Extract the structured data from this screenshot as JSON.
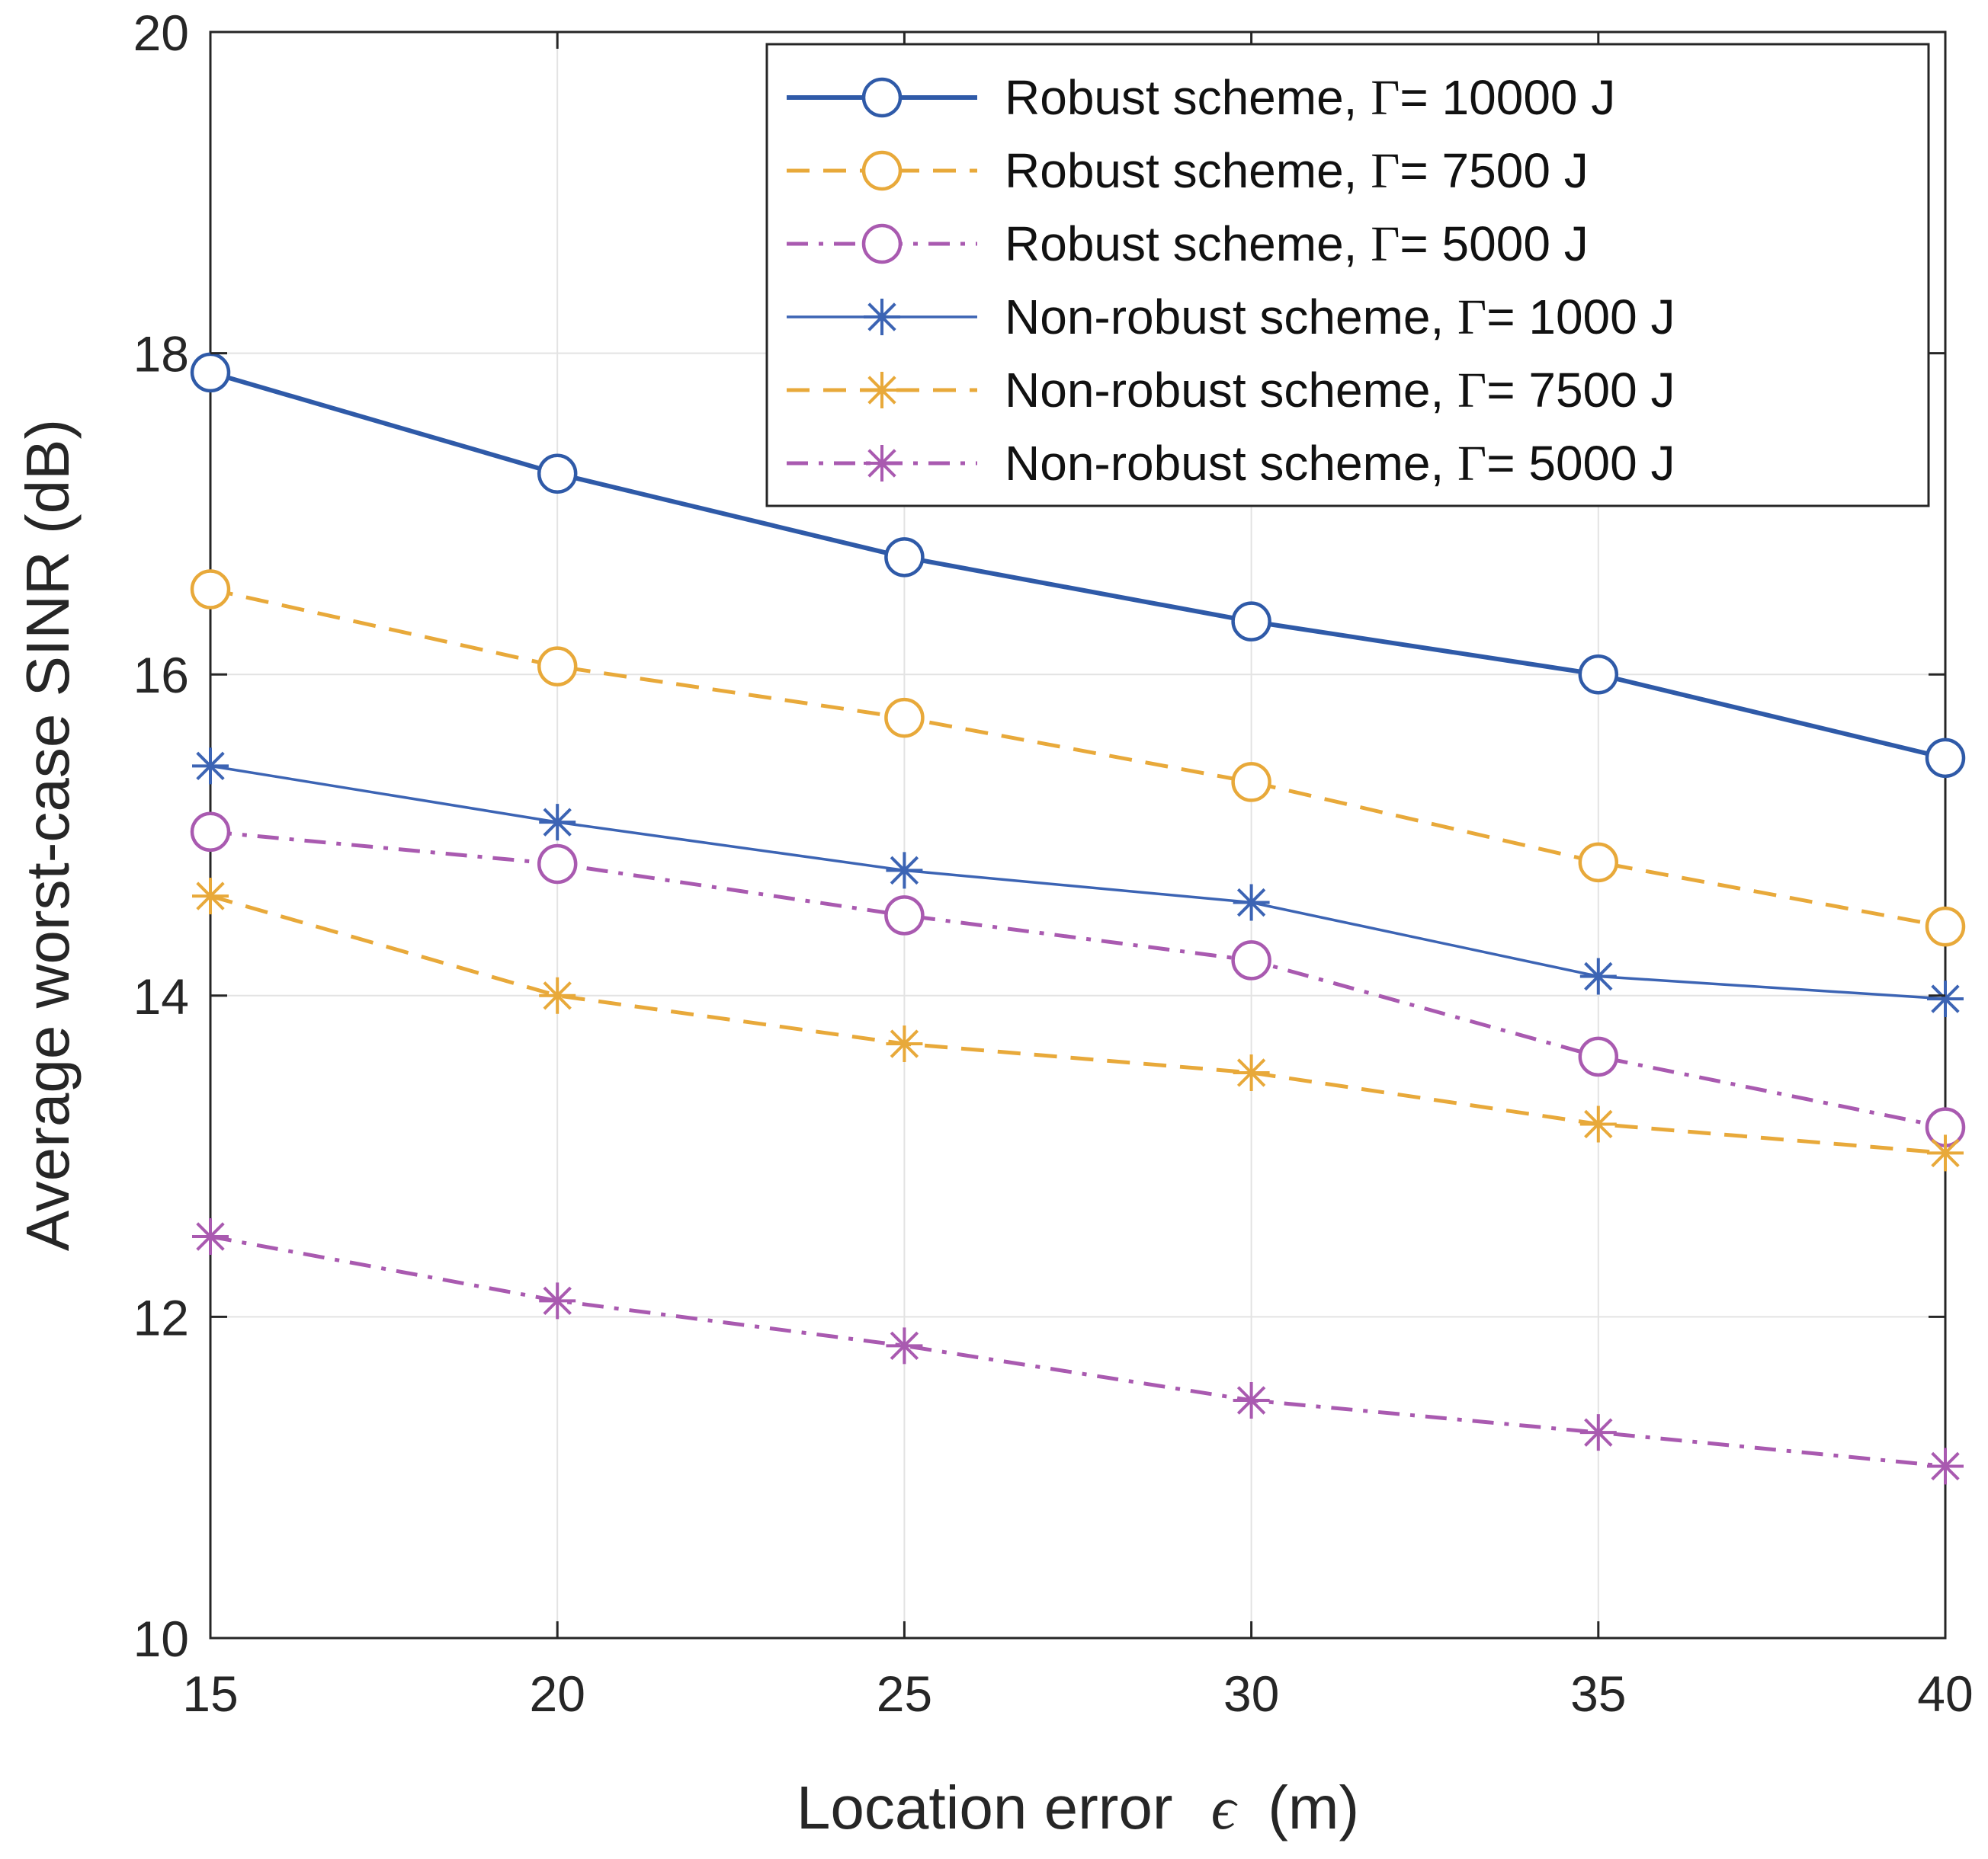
{
  "chart_data": {
    "type": "line",
    "title": "",
    "xlabel": "Location error",
    "xlabel_symbol": "ϵ",
    "xlabel_unit": "(m)",
    "ylabel": "Average worst-case SINR (dB)",
    "xlim": [
      15,
      40
    ],
    "ylim": [
      10,
      20
    ],
    "x": [
      15,
      20,
      25,
      30,
      35,
      40
    ],
    "xticks": [
      "15",
      "20",
      "25",
      "30",
      "35",
      "40"
    ],
    "yticks": [
      "10",
      "12",
      "14",
      "16",
      "18",
      "20"
    ],
    "grid": true,
    "legend_position": "top-right",
    "series": [
      {
        "name": "Robust scheme, ",
        "gamma_symbol": "Γ",
        "gamma_value": "= 10000 J",
        "color": "#2f5aa8",
        "dash": "solid",
        "marker": "circle",
        "width": "thick",
        "values": [
          17.88,
          17.25,
          16.73,
          16.33,
          16.0,
          15.48
        ]
      },
      {
        "name": "Robust scheme, ",
        "gamma_symbol": "Γ",
        "gamma_value": "= 7500 J",
        "color": "#e8a93a",
        "dash": "dashed",
        "marker": "circle",
        "width": "normal",
        "values": [
          16.53,
          16.05,
          15.73,
          15.33,
          14.83,
          14.43
        ]
      },
      {
        "name": "Robust scheme, ",
        "gamma_symbol": "Γ",
        "gamma_value": "= 5000 J",
        "color": "#a95ab0",
        "dash": "dashdot",
        "marker": "circle",
        "width": "normal",
        "values": [
          15.02,
          14.82,
          14.5,
          14.22,
          13.62,
          13.18
        ]
      },
      {
        "name": "Non-robust scheme, ",
        "gamma_symbol": "Γ",
        "gamma_value": "= 1000 J",
        "color": "#3c64b4",
        "dash": "solid",
        "marker": "star",
        "width": "thin",
        "values": [
          15.43,
          15.08,
          14.78,
          14.58,
          14.12,
          13.98
        ]
      },
      {
        "name": "Non-robust scheme, ",
        "gamma_symbol": "Γ",
        "gamma_value": "= 7500 J",
        "color": "#e8a93a",
        "dash": "dashed",
        "marker": "star",
        "width": "normal",
        "values": [
          14.62,
          14.0,
          13.7,
          13.52,
          13.2,
          13.02
        ]
      },
      {
        "name": "Non-robust scheme, ",
        "gamma_symbol": "Γ",
        "gamma_value": "= 5000 J",
        "color": "#a95ab0",
        "dash": "dashdot",
        "marker": "star",
        "width": "normal",
        "values": [
          12.5,
          12.1,
          11.82,
          11.48,
          11.28,
          11.07
        ]
      }
    ]
  }
}
